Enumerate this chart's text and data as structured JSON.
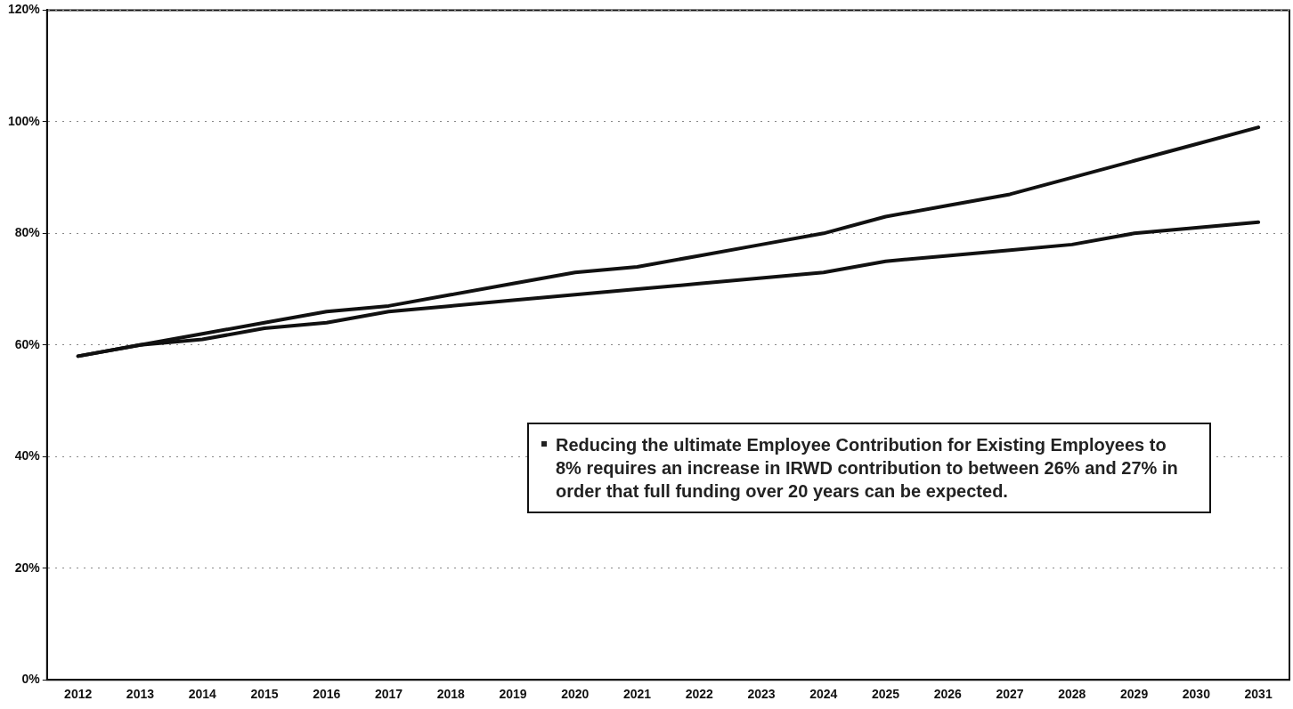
{
  "chart_data": {
    "type": "line",
    "categories": [
      "2012",
      "2013",
      "2014",
      "2015",
      "2016",
      "2017",
      "2018",
      "2019",
      "2020",
      "2021",
      "2022",
      "2023",
      "2024",
      "2025",
      "2026",
      "2027",
      "2028",
      "2029",
      "2030",
      "2031"
    ],
    "series": [
      {
        "color": "#111111",
        "values": [
          58,
          60,
          62,
          64,
          66,
          67,
          69,
          71,
          73,
          74,
          76,
          78,
          80,
          83,
          85,
          87,
          90,
          93,
          96,
          99
        ]
      },
      {
        "color": "#111111",
        "values": [
          58,
          60,
          61,
          63,
          64,
          66,
          67,
          68,
          69,
          70,
          71,
          72,
          73,
          75,
          76,
          77,
          78,
          80,
          81,
          82
        ]
      }
    ],
    "ylim": [
      0,
      120
    ],
    "yticks": [
      {
        "value": 0,
        "label": "0%"
      },
      {
        "value": 20,
        "label": "20%"
      },
      {
        "value": 40,
        "label": "40%"
      },
      {
        "value": 60,
        "label": "60%"
      },
      {
        "value": 80,
        "label": "80%"
      },
      {
        "value": 100,
        "label": "100%"
      },
      {
        "value": 120,
        "label": "120%"
      }
    ],
    "grid": "y",
    "legend": false,
    "marker": "none",
    "line_style": "solid",
    "annotations": [
      "Reducing the ultimate Employee Contribution for Existing Employees to 8% requires an increase in IRWD contribution to between 26% and 27% in order that full funding over 20 years can be expected."
    ]
  }
}
